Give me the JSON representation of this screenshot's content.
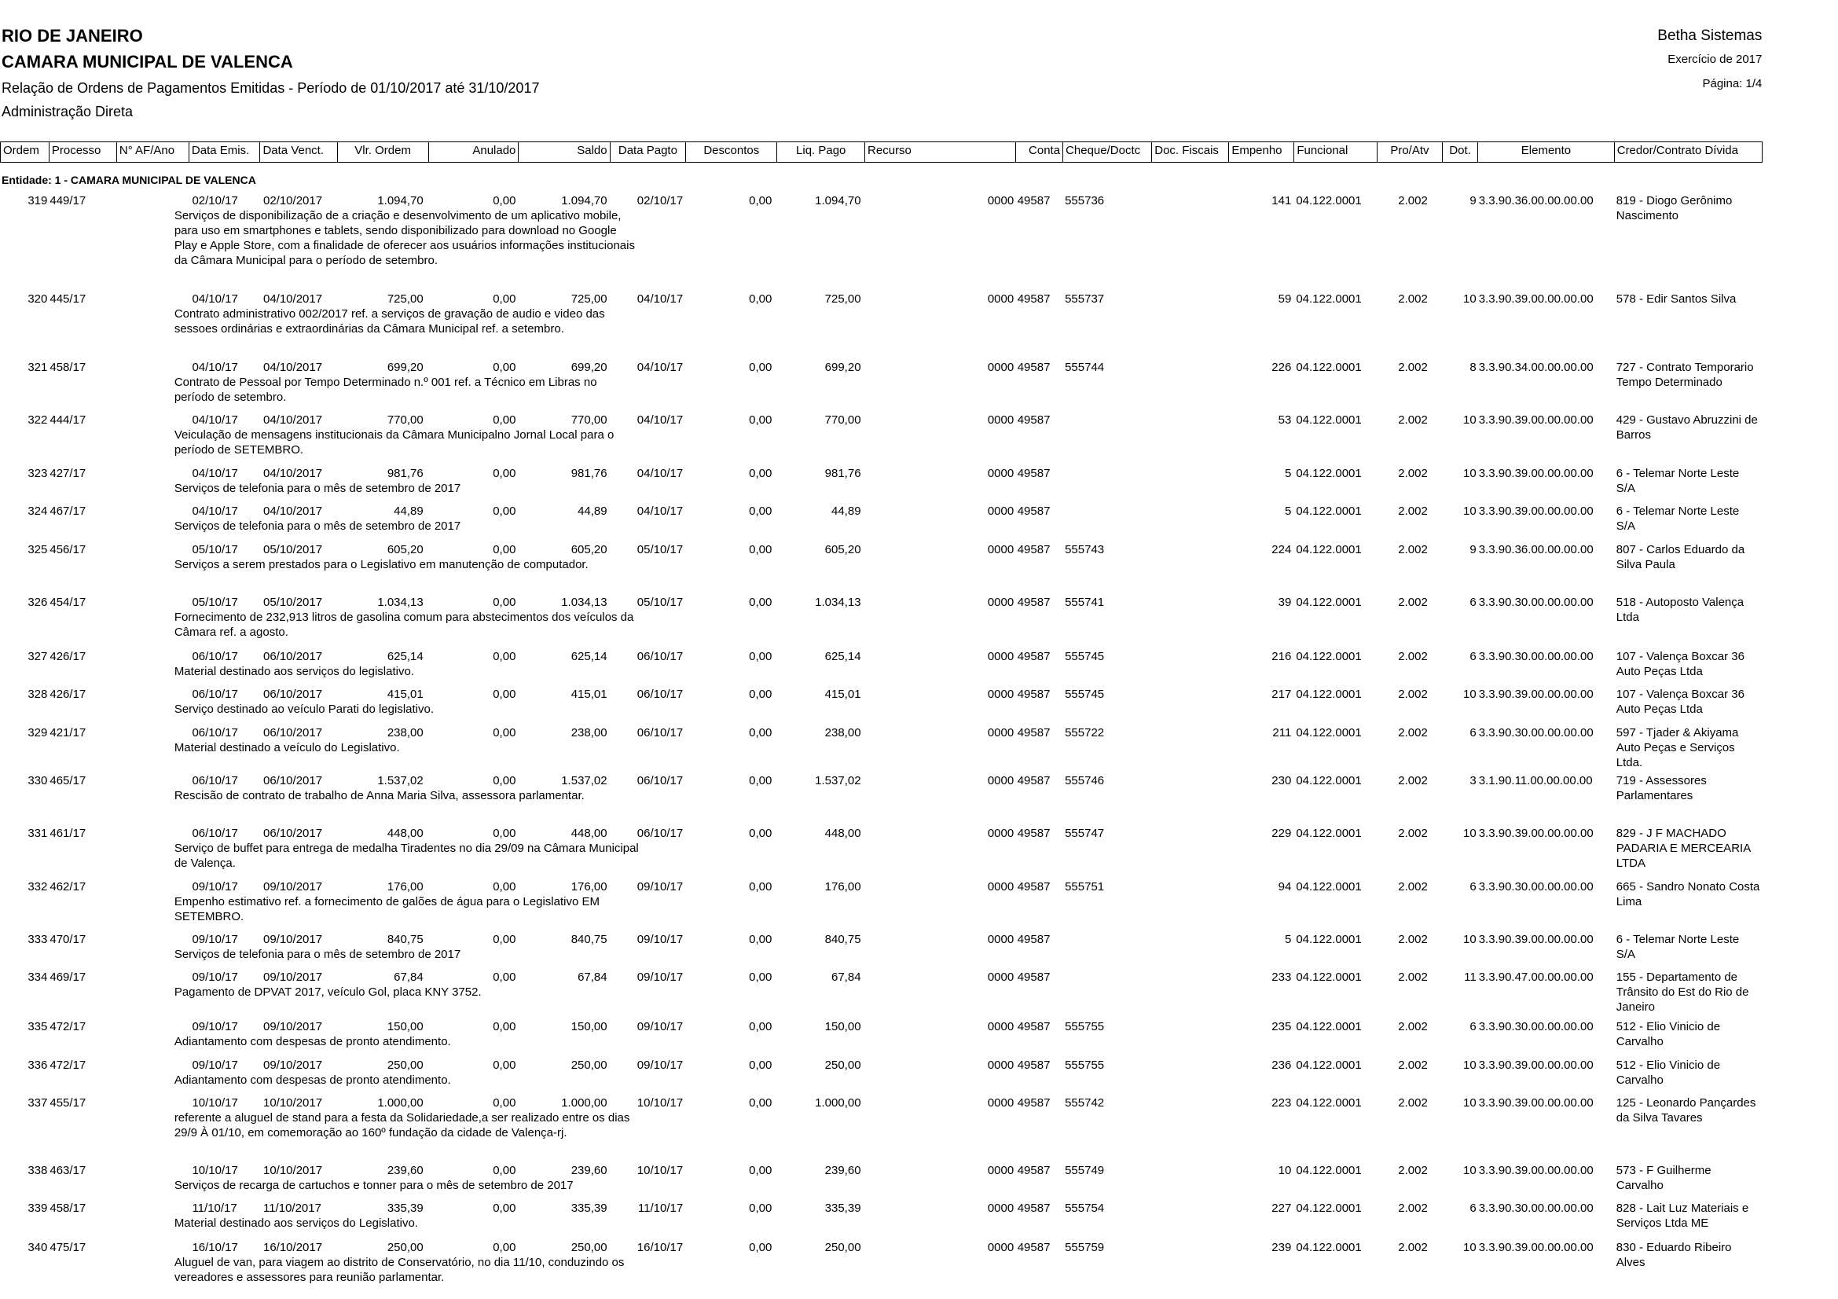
{
  "header": {
    "left": [
      "RIO DE JANEIRO",
      "CAMARA MUNICIPAL DE VALENCA",
      "Relação de Ordens de Pagamentos Emitidas - Período de 01/10/2017 até 31/10/2017",
      "Administração Direta"
    ],
    "right": [
      "Betha Sistemas",
      "Exercício de 2017",
      "Página: 1/4"
    ]
  },
  "table": {
    "columns": [
      "Ordem",
      "Processo",
      "N° AF/Ano",
      "Data Emis.",
      "Data Venct.",
      "Vlr. Ordem",
      "Anulado",
      "Saldo",
      "Data Pagto",
      "Descontos",
      "Liq. Pago",
      "Recurso",
      "Conta",
      "Cheque/Doctc",
      "Doc. Fiscais",
      "Empenho",
      "Funcional",
      "Pro/Atv",
      "Dot.",
      "Elemento",
      "Credor/Contrato Dívida"
    ],
    "entity": "Entidade: 1 - CAMARA MUNICIPAL DE VALENCA",
    "rows": [
      {
        "ordem": "319",
        "processo": "449/17",
        "data_emis": "02/10/17",
        "data_venct": "02/10/2017",
        "vlr_ordem": "1.094,70",
        "anulado": "0,00",
        "saldo": "1.094,70",
        "data_pagto": "02/10/17",
        "descontos": "0,00",
        "liq_pago": "1.094,70",
        "recurso": "0000",
        "conta": "49587",
        "cheque": "555736",
        "empenho": "141",
        "funcional": "04.122.0001",
        "pro_atv": "2.002",
        "dot": "9",
        "elemento": "3.3.90.36.00.00.00.00",
        "credor": "819 - Diogo Gerônimo Nascimento",
        "historico": "Serviços de disponibilização de a criação e desenvolvimento de um aplicativo mobile, para uso em smartphones e tablets, sendo disponibilizado para download no Google Play e Apple Store, com a finalidade de oferecer aos usuários  informações institucionais da Câmara Municipal para o período de setembro."
      },
      {
        "ordem": "320",
        "processo": "445/17",
        "data_emis": "04/10/17",
        "data_venct": "04/10/2017",
        "vlr_ordem": "725,00",
        "anulado": "0,00",
        "saldo": "725,00",
        "data_pagto": "04/10/17",
        "descontos": "0,00",
        "liq_pago": "725,00",
        "recurso": "0000",
        "conta": "49587",
        "cheque": "555737",
        "empenho": "59",
        "funcional": "04.122.0001",
        "pro_atv": "2.002",
        "dot": "10",
        "elemento": "3.3.90.39.00.00.00.00",
        "credor": "578 - Edir Santos Silva",
        "historico": "Contrato administrativo 002/2017 ref. a serviços de gravação de audio e video das sessoes ordinárias e extraordinárias da Câmara Municipal ref. a setembro."
      },
      {
        "ordem": "321",
        "processo": "458/17",
        "data_emis": "04/10/17",
        "data_venct": "04/10/2017",
        "vlr_ordem": "699,20",
        "anulado": "0,00",
        "saldo": "699,20",
        "data_pagto": "04/10/17",
        "descontos": "0,00",
        "liq_pago": "699,20",
        "recurso": "0000",
        "conta": "49587",
        "cheque": "555744",
        "empenho": "226",
        "funcional": "04.122.0001",
        "pro_atv": "2.002",
        "dot": "8",
        "elemento": "3.3.90.34.00.00.00.00",
        "credor": "727 - Contrato Temporario Tempo Determinado",
        "historico": "Contrato de Pessoal por Tempo Determinado n.º 001 ref. a Técnico em Libras no período de setembro."
      },
      {
        "ordem": "322",
        "processo": "444/17",
        "data_emis": "04/10/17",
        "data_venct": "04/10/2017",
        "vlr_ordem": "770,00",
        "anulado": "0,00",
        "saldo": "770,00",
        "data_pagto": "04/10/17",
        "descontos": "0,00",
        "liq_pago": "770,00",
        "recurso": "0000",
        "conta": "49587",
        "empenho": "53",
        "funcional": "04.122.0001",
        "pro_atv": "2.002",
        "dot": "10",
        "elemento": "3.3.90.39.00.00.00.00",
        "credor": "429 - Gustavo Abruzzini de Barros",
        "historico": "Veiculação de mensagens institucionais da Câmara Municipalno Jornal Local para o período de SETEMBRO."
      },
      {
        "ordem": "323",
        "processo": "427/17",
        "data_emis": "04/10/17",
        "data_venct": "04/10/2017",
        "vlr_ordem": "981,76",
        "anulado": "0,00",
        "saldo": "981,76",
        "data_pagto": "04/10/17",
        "descontos": "0,00",
        "liq_pago": "981,76",
        "recurso": "0000",
        "conta": "49587",
        "empenho": "5",
        "funcional": "04.122.0001",
        "pro_atv": "2.002",
        "dot": "10",
        "elemento": "3.3.90.39.00.00.00.00",
        "credor": "6 - Telemar Norte Leste S/A",
        "historico": "Serviços de telefonia para o mês de setembro de 2017"
      },
      {
        "ordem": "324",
        "processo": "467/17",
        "data_emis": "04/10/17",
        "data_venct": "04/10/2017",
        "vlr_ordem": "44,89",
        "anulado": "0,00",
        "saldo": "44,89",
        "data_pagto": "04/10/17",
        "descontos": "0,00",
        "liq_pago": "44,89",
        "recurso": "0000",
        "conta": "49587",
        "empenho": "5",
        "funcional": "04.122.0001",
        "pro_atv": "2.002",
        "dot": "10",
        "elemento": "3.3.90.39.00.00.00.00",
        "credor": "6 - Telemar Norte Leste S/A",
        "historico": "Serviços de telefonia para o mês de setembro de 2017"
      },
      {
        "ordem": "325",
        "processo": "456/17",
        "data_emis": "05/10/17",
        "data_venct": "05/10/2017",
        "vlr_ordem": "605,20",
        "anulado": "0,00",
        "saldo": "605,20",
        "data_pagto": "05/10/17",
        "descontos": "0,00",
        "liq_pago": "605,20",
        "recurso": "0000",
        "conta": "49587",
        "cheque": "555743",
        "empenho": "224",
        "funcional": "04.122.0001",
        "pro_atv": "2.002",
        "dot": "9",
        "elemento": "3.3.90.36.00.00.00.00",
        "credor": "807 - Carlos Eduardo da Silva Paula",
        "historico": "Serviços a serem prestados para o Legislativo em manutenção de computador."
      },
      {
        "ordem": "326",
        "processo": "454/17",
        "data_emis": "05/10/17",
        "data_venct": "05/10/2017",
        "vlr_ordem": "1.034,13",
        "anulado": "0,00",
        "saldo": "1.034,13",
        "data_pagto": "05/10/17",
        "descontos": "0,00",
        "liq_pago": "1.034,13",
        "recurso": "0000",
        "conta": "49587",
        "cheque": "555741",
        "empenho": "39",
        "funcional": "04.122.0001",
        "pro_atv": "2.002",
        "dot": "6",
        "elemento": "3.3.90.30.00.00.00.00",
        "credor": "518 - Autoposto Valença Ltda",
        "historico": "Fornecimento de 232,913 litros de gasolina comum para abstecimentos dos veículos da Câmara ref. a agosto."
      },
      {
        "ordem": "327",
        "processo": "426/17",
        "data_emis": "06/10/17",
        "data_venct": "06/10/2017",
        "vlr_ordem": "625,14",
        "anulado": "0,00",
        "saldo": "625,14",
        "data_pagto": "06/10/17",
        "descontos": "0,00",
        "liq_pago": "625,14",
        "recurso": "0000",
        "conta": "49587",
        "cheque": "555745",
        "empenho": "216",
        "funcional": "04.122.0001",
        "pro_atv": "2.002",
        "dot": "6",
        "elemento": "3.3.90.30.00.00.00.00",
        "credor": "107 - Valença Boxcar 36 Auto Peças Ltda",
        "historico": "Material destinado aos serviços do legislativo."
      },
      {
        "ordem": "328",
        "processo": "426/17",
        "data_emis": "06/10/17",
        "data_venct": "06/10/2017",
        "vlr_ordem": "415,01",
        "anulado": "0,00",
        "saldo": "415,01",
        "data_pagto": "06/10/17",
        "descontos": "0,00",
        "liq_pago": "415,01",
        "recurso": "0000",
        "conta": "49587",
        "cheque": "555745",
        "empenho": "217",
        "funcional": "04.122.0001",
        "pro_atv": "2.002",
        "dot": "10",
        "elemento": "3.3.90.39.00.00.00.00",
        "credor": "107 - Valença Boxcar 36 Auto Peças Ltda",
        "historico": "Serviço destinado ao veículo Parati do legislativo."
      },
      {
        "ordem": "329",
        "processo": "421/17",
        "data_emis": "06/10/17",
        "data_venct": "06/10/2017",
        "vlr_ordem": "238,00",
        "anulado": "0,00",
        "saldo": "238,00",
        "data_pagto": "06/10/17",
        "descontos": "0,00",
        "liq_pago": "238,00",
        "recurso": "0000",
        "conta": "49587",
        "cheque": "555722",
        "empenho": "211",
        "funcional": "04.122.0001",
        "pro_atv": "2.002",
        "dot": "6",
        "elemento": "3.3.90.30.00.00.00.00",
        "credor": "597 - Tjader & Akiyama Auto Peças e Serviços Ltda.",
        "historico": "Material destinado a veículo do Legislativo."
      },
      {
        "ordem": "330",
        "processo": "465/17",
        "data_emis": "06/10/17",
        "data_venct": "06/10/2017",
        "vlr_ordem": "1.537,02",
        "anulado": "0,00",
        "saldo": "1.537,02",
        "data_pagto": "06/10/17",
        "descontos": "0,00",
        "liq_pago": "1.537,02",
        "recurso": "0000",
        "conta": "49587",
        "cheque": "555746",
        "empenho": "230",
        "funcional": "04.122.0001",
        "pro_atv": "2.002",
        "dot": "3",
        "elemento": "3.1.90.11.00.00.00.00",
        "credor": "719 - Assessores Parlamentares",
        "historico": "Rescisão de contrato de trabalho de Anna Maria Silva, assessora parlamentar."
      },
      {
        "ordem": "331",
        "processo": "461/17",
        "data_emis": "06/10/17",
        "data_venct": "06/10/2017",
        "vlr_ordem": "448,00",
        "anulado": "0,00",
        "saldo": "448,00",
        "data_pagto": "06/10/17",
        "descontos": "0,00",
        "liq_pago": "448,00",
        "recurso": "0000",
        "conta": "49587",
        "cheque": "555747",
        "empenho": "229",
        "funcional": "04.122.0001",
        "pro_atv": "2.002",
        "dot": "10",
        "elemento": "3.3.90.39.00.00.00.00",
        "credor": "829 - J F MACHADO PADARIA E MERCEARIA LTDA",
        "historico": "Serviço de buffet para entrega de medalha Tiradentes no dia 29/09 na Câmara Municipal de Valença."
      },
      {
        "ordem": "332",
        "processo": "462/17",
        "data_emis": "09/10/17",
        "data_venct": "09/10/2017",
        "vlr_ordem": "176,00",
        "anulado": "0,00",
        "saldo": "176,00",
        "data_pagto": "09/10/17",
        "descontos": "0,00",
        "liq_pago": "176,00",
        "recurso": "0000",
        "conta": "49587",
        "cheque": "555751",
        "empenho": "94",
        "funcional": "04.122.0001",
        "pro_atv": "2.002",
        "dot": "6",
        "elemento": "3.3.90.30.00.00.00.00",
        "credor": "665 - Sandro Nonato Costa Lima",
        "historico": "Empenho estimativo ref. a fornecimento de galões de água para o Legislativo EM SETEMBRO."
      },
      {
        "ordem": "333",
        "processo": "470/17",
        "data_emis": "09/10/17",
        "data_venct": "09/10/2017",
        "vlr_ordem": "840,75",
        "anulado": "0,00",
        "saldo": "840,75",
        "data_pagto": "09/10/17",
        "descontos": "0,00",
        "liq_pago": "840,75",
        "recurso": "0000",
        "conta": "49587",
        "empenho": "5",
        "funcional": "04.122.0001",
        "pro_atv": "2.002",
        "dot": "10",
        "elemento": "3.3.90.39.00.00.00.00",
        "credor": "6 - Telemar Norte Leste S/A",
        "historico": "Serviços de telefonia para o mês de setembro de 2017"
      },
      {
        "ordem": "334",
        "processo": "469/17",
        "data_emis": "09/10/17",
        "data_venct": "09/10/2017",
        "vlr_ordem": "67,84",
        "anulado": "0,00",
        "saldo": "67,84",
        "data_pagto": "09/10/17",
        "descontos": "0,00",
        "liq_pago": "67,84",
        "recurso": "0000",
        "conta": "49587",
        "empenho": "233",
        "funcional": "04.122.0001",
        "pro_atv": "2.002",
        "dot": "11",
        "elemento": "3.3.90.47.00.00.00.00",
        "credor": "155 - Departamento de Trânsito do Est do Rio de Janeiro",
        "historico": "Pagamento de DPVAT 2017, veículo Gol, placa KNY 3752."
      },
      {
        "ordem": "335",
        "processo": "472/17",
        "data_emis": "09/10/17",
        "data_venct": "09/10/2017",
        "vlr_ordem": "150,00",
        "anulado": "0,00",
        "saldo": "150,00",
        "data_pagto": "09/10/17",
        "descontos": "0,00",
        "liq_pago": "150,00",
        "recurso": "0000",
        "conta": "49587",
        "cheque": "555755",
        "empenho": "235",
        "funcional": "04.122.0001",
        "pro_atv": "2.002",
        "dot": "6",
        "elemento": "3.3.90.30.00.00.00.00",
        "credor": "512 - Elio Vinicio de Carvalho",
        "historico": "Adiantamento com despesas de pronto atendimento."
      },
      {
        "ordem": "336",
        "processo": "472/17",
        "data_emis": "09/10/17",
        "data_venct": "09/10/2017",
        "vlr_ordem": "250,00",
        "anulado": "0,00",
        "saldo": "250,00",
        "data_pagto": "09/10/17",
        "descontos": "0,00",
        "liq_pago": "250,00",
        "recurso": "0000",
        "conta": "49587",
        "cheque": "555755",
        "empenho": "236",
        "funcional": "04.122.0001",
        "pro_atv": "2.002",
        "dot": "10",
        "elemento": "3.3.90.39.00.00.00.00",
        "credor": "512 - Elio Vinicio de Carvalho",
        "historico": "Adiantamento com despesas de pronto atendimento."
      },
      {
        "ordem": "337",
        "processo": "455/17",
        "data_emis": "10/10/17",
        "data_venct": "10/10/2017",
        "vlr_ordem": "1.000,00",
        "anulado": "0,00",
        "saldo": "1.000,00",
        "data_pagto": "10/10/17",
        "descontos": "0,00",
        "liq_pago": "1.000,00",
        "recurso": "0000",
        "conta": "49587",
        "cheque": "555742",
        "empenho": "223",
        "funcional": "04.122.0001",
        "pro_atv": "2.002",
        "dot": "10",
        "elemento": "3.3.90.39.00.00.00.00",
        "credor": "125 - Leonardo Pançardes da Silva Tavares",
        "historico": "referente a aluguel de stand para a festa da Solidariedade,a ser realizado entre os dias 29/9 À 01/10, em comemoração ao 160º fundação da cidade de Valença-rj."
      },
      {
        "ordem": "338",
        "processo": "463/17",
        "data_emis": "10/10/17",
        "data_venct": "10/10/2017",
        "vlr_ordem": "239,60",
        "anulado": "0,00",
        "saldo": "239,60",
        "data_pagto": "10/10/17",
        "descontos": "0,00",
        "liq_pago": "239,60",
        "recurso": "0000",
        "conta": "49587",
        "cheque": "555749",
        "empenho": "10",
        "funcional": "04.122.0001",
        "pro_atv": "2.002",
        "dot": "10",
        "elemento": "3.3.90.39.00.00.00.00",
        "credor": "573 - F Guilherme Carvalho",
        "historico": "Serviços de recarga de cartuchos e tonner para o mês de setembro de 2017"
      },
      {
        "ordem": "339",
        "processo": "458/17",
        "data_emis": "11/10/17",
        "data_venct": "11/10/2017",
        "vlr_ordem": "335,39",
        "anulado": "0,00",
        "saldo": "335,39",
        "data_pagto": "11/10/17",
        "descontos": "0,00",
        "liq_pago": "335,39",
        "recurso": "0000",
        "conta": "49587",
        "cheque": "555754",
        "empenho": "227",
        "funcional": "04.122.0001",
        "pro_atv": "2.002",
        "dot": "6",
        "elemento": "3.3.90.30.00.00.00.00",
        "credor": "828 - Lait Luz Materiais e Serviços Ltda ME",
        "historico": "Material destinado aos serviços do Legislativo."
      },
      {
        "ordem": "340",
        "processo": "475/17",
        "data_emis": "16/10/17",
        "data_venct": "16/10/2017",
        "vlr_ordem": "250,00",
        "anulado": "0,00",
        "saldo": "250,00",
        "data_pagto": "16/10/17",
        "descontos": "0,00",
        "liq_pago": "250,00",
        "recurso": "0000",
        "conta": "49587",
        "cheque": "555759",
        "empenho": "239",
        "funcional": "04.122.0001",
        "pro_atv": "2.002",
        "dot": "10",
        "elemento": "3.3.90.39.00.00.00.00",
        "credor": "830 - Eduardo Ribeiro Alves",
        "historico": "Aluguel de van, para viagem ao distrito de Conservatório, no dia 11/10, conduzindo os vereadores e assessores para reunião parlamentar."
      }
    ]
  }
}
